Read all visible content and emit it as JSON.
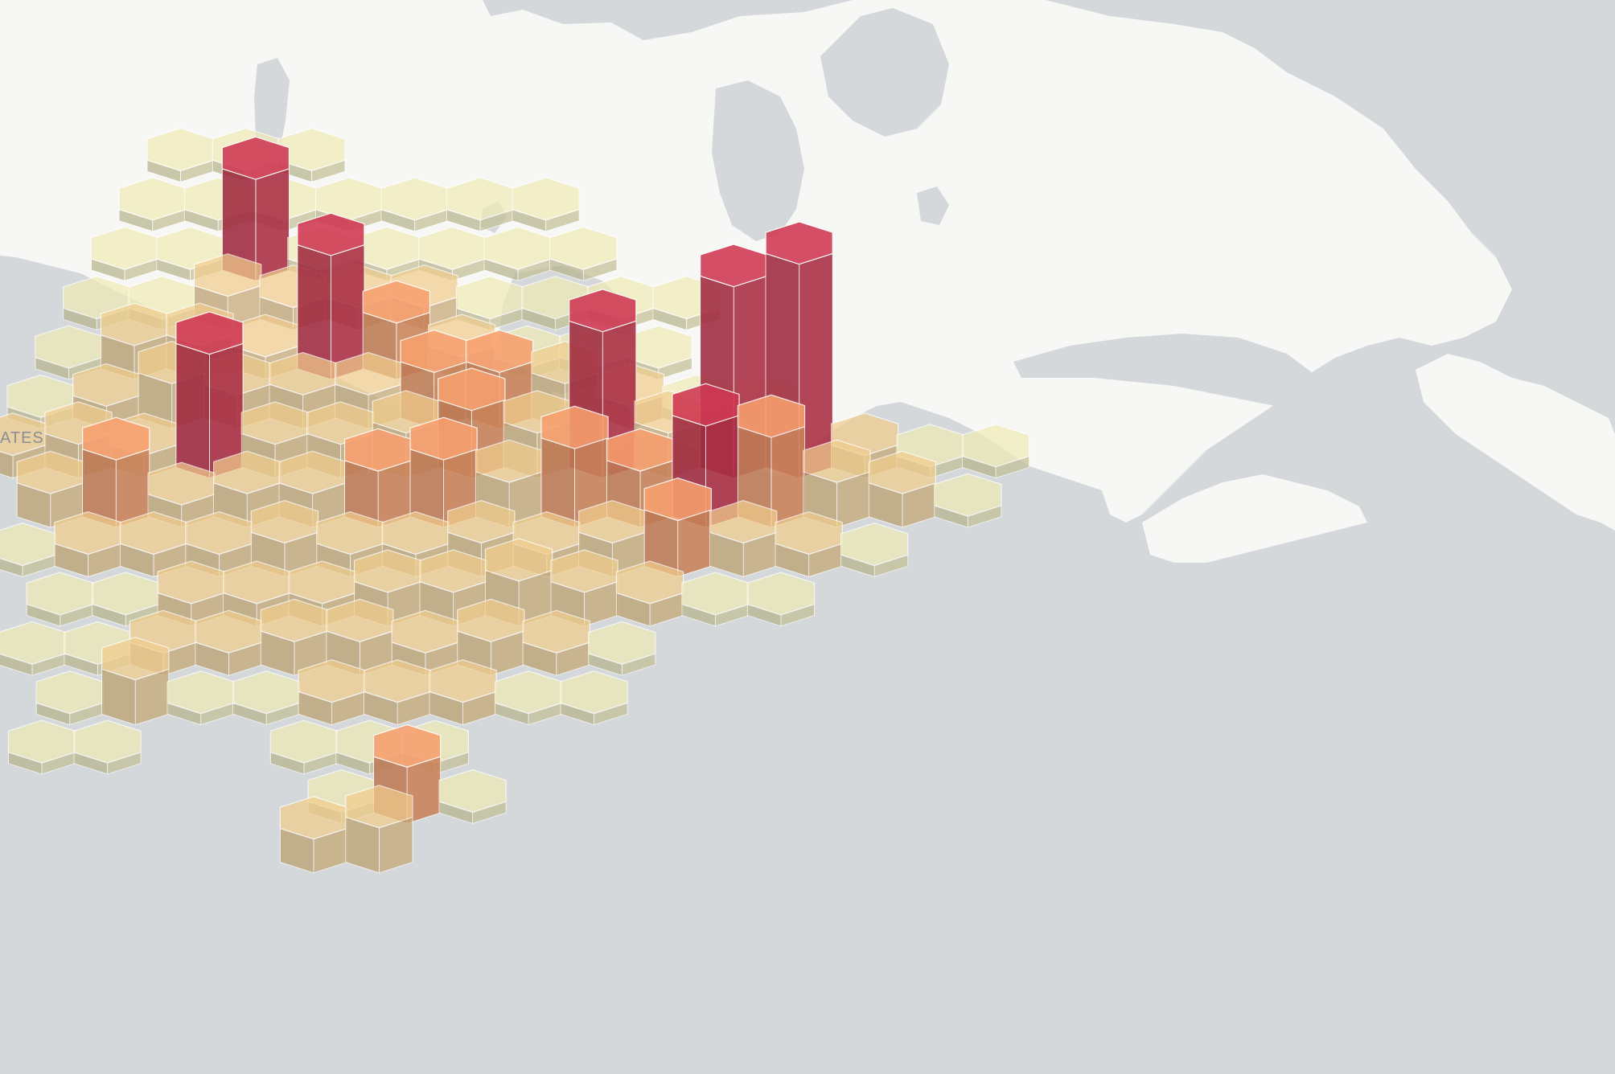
{
  "map": {
    "label": "ATES",
    "colors": {
      "ocean": "#d4d8db",
      "land": "#f7f7f6",
      "lake": "#d4d8db",
      "hex_low": "#e6e2b0",
      "hex_mid": "#e8c588",
      "hex_high": "#ee9a6a",
      "hex_peak": "#c8354f",
      "hex_edge": "#ffffff"
    },
    "scale": {
      "low": [
        0,
        2
      ],
      "mid": [
        2,
        5
      ],
      "high": [
        5,
        9
      ],
      "peak": [
        9,
        20
      ]
    }
  },
  "hexbins": [
    {
      "col": 3,
      "row": 0,
      "value": 1
    },
    {
      "col": 4,
      "row": 0,
      "value": 1
    },
    {
      "col": 5,
      "row": 0,
      "value": 1
    },
    {
      "col": 2,
      "row": 1,
      "value": 1
    },
    {
      "col": 3,
      "row": 1,
      "value": 1
    },
    {
      "col": 4,
      "row": 1,
      "value": 1
    },
    {
      "col": 5,
      "row": 1,
      "value": 1
    },
    {
      "col": 6,
      "row": 1,
      "value": 1
    },
    {
      "col": 7,
      "row": 1,
      "value": 1
    },
    {
      "col": 8,
      "row": 1,
      "value": 1
    },
    {
      "col": 2,
      "row": 2,
      "value": 1
    },
    {
      "col": 3,
      "row": 2,
      "value": 1
    },
    {
      "col": 4,
      "row": 2,
      "value": 9
    },
    {
      "col": 5,
      "row": 2,
      "value": 1
    },
    {
      "col": 6,
      "row": 2,
      "value": 1
    },
    {
      "col": 7,
      "row": 2,
      "value": 1
    },
    {
      "col": 8,
      "row": 2,
      "value": 1
    },
    {
      "col": 9,
      "row": 2,
      "value": 1
    },
    {
      "col": 1,
      "row": 3,
      "value": 1
    },
    {
      "col": 2,
      "row": 3,
      "value": 1
    },
    {
      "col": 3,
      "row": 3,
      "value": 3
    },
    {
      "col": 4,
      "row": 3,
      "value": 2
    },
    {
      "col": 5,
      "row": 3,
      "value": 2
    },
    {
      "col": 6,
      "row": 3,
      "value": 2
    },
    {
      "col": 7,
      "row": 3,
      "value": 1
    },
    {
      "col": 8,
      "row": 3,
      "value": 1
    },
    {
      "col": 9,
      "row": 3,
      "value": 1
    },
    {
      "col": 10,
      "row": 3,
      "value": 1
    },
    {
      "col": 1,
      "row": 4,
      "value": 1
    },
    {
      "col": 2,
      "row": 4,
      "value": 3
    },
    {
      "col": 3,
      "row": 4,
      "value": 3
    },
    {
      "col": 4,
      "row": 4,
      "value": 2
    },
    {
      "col": 5,
      "row": 4,
      "value": 11
    },
    {
      "col": 6,
      "row": 4,
      "value": 5
    },
    {
      "col": 7,
      "row": 4,
      "value": 2
    },
    {
      "col": 8,
      "row": 4,
      "value": 1
    },
    {
      "col": 9,
      "row": 4,
      "value": 1
    },
    {
      "col": 10,
      "row": 4,
      "value": 1
    },
    {
      "col": 0,
      "row": 5,
      "value": 1
    },
    {
      "col": 1,
      "row": 5,
      "value": 2
    },
    {
      "col": 2,
      "row": 5,
      "value": 4
    },
    {
      "col": 3,
      "row": 5,
      "value": 3
    },
    {
      "col": 4,
      "row": 5,
      "value": 3
    },
    {
      "col": 5,
      "row": 5,
      "value": 3
    },
    {
      "col": 6,
      "row": 5,
      "value": 5
    },
    {
      "col": 7,
      "row": 5,
      "value": 5
    },
    {
      "col": 8,
      "row": 5,
      "value": 4
    },
    {
      "col": 9,
      "row": 5,
      "value": 2
    },
    {
      "col": 10,
      "row": 5,
      "value": 1
    },
    {
      "col": 11,
      "row": 5,
      "value": 1
    },
    {
      "col": 0,
      "row": 6,
      "value": 2
    },
    {
      "col": 1,
      "row": 6,
      "value": 3
    },
    {
      "col": 2,
      "row": 6,
      "value": 2
    },
    {
      "col": 3,
      "row": 6,
      "value": 11
    },
    {
      "col": 4,
      "row": 6,
      "value": 3
    },
    {
      "col": 5,
      "row": 6,
      "value": 3
    },
    {
      "col": 6,
      "row": 6,
      "value": 4
    },
    {
      "col": 7,
      "row": 6,
      "value": 6
    },
    {
      "col": 8,
      "row": 6,
      "value": 4
    },
    {
      "col": 9,
      "row": 6,
      "value": 13
    },
    {
      "col": 10,
      "row": 6,
      "value": 4
    },
    {
      "col": 11,
      "row": 6,
      "value": 17
    },
    {
      "col": 12,
      "row": 6,
      "value": 19
    },
    {
      "col": 13,
      "row": 6,
      "value": 2
    },
    {
      "col": 14,
      "row": 6,
      "value": 1
    },
    {
      "col": 15,
      "row": 6,
      "value": 1
    },
    {
      "col": 0,
      "row": 7,
      "value": 3
    },
    {
      "col": 1,
      "row": 7,
      "value": 6
    },
    {
      "col": 2,
      "row": 7,
      "value": 2
    },
    {
      "col": 3,
      "row": 7,
      "value": 3
    },
    {
      "col": 4,
      "row": 7,
      "value": 3
    },
    {
      "col": 5,
      "row": 7,
      "value": 5
    },
    {
      "col": 6,
      "row": 7,
      "value": 6
    },
    {
      "col": 7,
      "row": 7,
      "value": 4
    },
    {
      "col": 8,
      "row": 7,
      "value": 7
    },
    {
      "col": 9,
      "row": 7,
      "value": 5
    },
    {
      "col": 10,
      "row": 7,
      "value": 9
    },
    {
      "col": 11,
      "row": 7,
      "value": 8
    },
    {
      "col": 12,
      "row": 7,
      "value": 4
    },
    {
      "col": 13,
      "row": 7,
      "value": 3
    },
    {
      "col": 14,
      "row": 7,
      "value": 1
    },
    {
      "col": 0,
      "row": 8,
      "value": 1
    },
    {
      "col": 1,
      "row": 8,
      "value": 2
    },
    {
      "col": 2,
      "row": 8,
      "value": 2
    },
    {
      "col": 3,
      "row": 8,
      "value": 2
    },
    {
      "col": 4,
      "row": 8,
      "value": 3
    },
    {
      "col": 5,
      "row": 8,
      "value": 2
    },
    {
      "col": 6,
      "row": 8,
      "value": 2
    },
    {
      "col": 7,
      "row": 8,
      "value": 3
    },
    {
      "col": 8,
      "row": 8,
      "value": 2
    },
    {
      "col": 9,
      "row": 8,
      "value": 3
    },
    {
      "col": 10,
      "row": 8,
      "value": 5
    },
    {
      "col": 11,
      "row": 8,
      "value": 3
    },
    {
      "col": 12,
      "row": 8,
      "value": 2
    },
    {
      "col": 13,
      "row": 8,
      "value": 1
    },
    {
      "col": 0,
      "row": 9,
      "value": 1
    },
    {
      "col": 1,
      "row": 9,
      "value": 1
    },
    {
      "col": 2,
      "row": 9,
      "value": 2
    },
    {
      "col": 3,
      "row": 9,
      "value": 2
    },
    {
      "col": 4,
      "row": 9,
      "value": 2
    },
    {
      "col": 5,
      "row": 9,
      "value": 3
    },
    {
      "col": 6,
      "row": 9,
      "value": 3
    },
    {
      "col": 7,
      "row": 9,
      "value": 4
    },
    {
      "col": 8,
      "row": 9,
      "value": 3
    },
    {
      "col": 9,
      "row": 9,
      "value": 2
    },
    {
      "col": 10,
      "row": 9,
      "value": 1
    },
    {
      "col": 11,
      "row": 9,
      "value": 1
    },
    {
      "col": 0,
      "row": 10,
      "value": 1
    },
    {
      "col": 1,
      "row": 10,
      "value": 1
    },
    {
      "col": 2,
      "row": 10,
      "value": 2
    },
    {
      "col": 3,
      "row": 10,
      "value": 2
    },
    {
      "col": 4,
      "row": 10,
      "value": 3
    },
    {
      "col": 5,
      "row": 10,
      "value": 3
    },
    {
      "col": 6,
      "row": 10,
      "value": 2
    },
    {
      "col": 7,
      "row": 10,
      "value": 3
    },
    {
      "col": 8,
      "row": 10,
      "value": 2
    },
    {
      "col": 9,
      "row": 10,
      "value": 1
    },
    {
      "col": 0,
      "row": 11,
      "value": 1
    },
    {
      "col": 1,
      "row": 11,
      "value": 4
    },
    {
      "col": 2,
      "row": 11,
      "value": 1
    },
    {
      "col": 3,
      "row": 11,
      "value": 1
    },
    {
      "col": 4,
      "row": 11,
      "value": 2
    },
    {
      "col": 5,
      "row": 11,
      "value": 2
    },
    {
      "col": 6,
      "row": 11,
      "value": 2
    },
    {
      "col": 7,
      "row": 11,
      "value": 1
    },
    {
      "col": 8,
      "row": 11,
      "value": 1
    },
    {
      "col": 0,
      "row": 12,
      "value": 1
    },
    {
      "col": 1,
      "row": 12,
      "value": 1
    },
    {
      "col": 4,
      "row": 12,
      "value": 1
    },
    {
      "col": 5,
      "row": 12,
      "value": 1
    },
    {
      "col": 6,
      "row": 12,
      "value": 1
    },
    {
      "col": 4,
      "row": 13,
      "value": 1
    },
    {
      "col": 5,
      "row": 13,
      "value": 5
    },
    {
      "col": 6,
      "row": 13,
      "value": 1
    },
    {
      "col": 4,
      "row": 14,
      "value": 3
    },
    {
      "col": 5,
      "row": 14,
      "value": 4
    }
  ]
}
